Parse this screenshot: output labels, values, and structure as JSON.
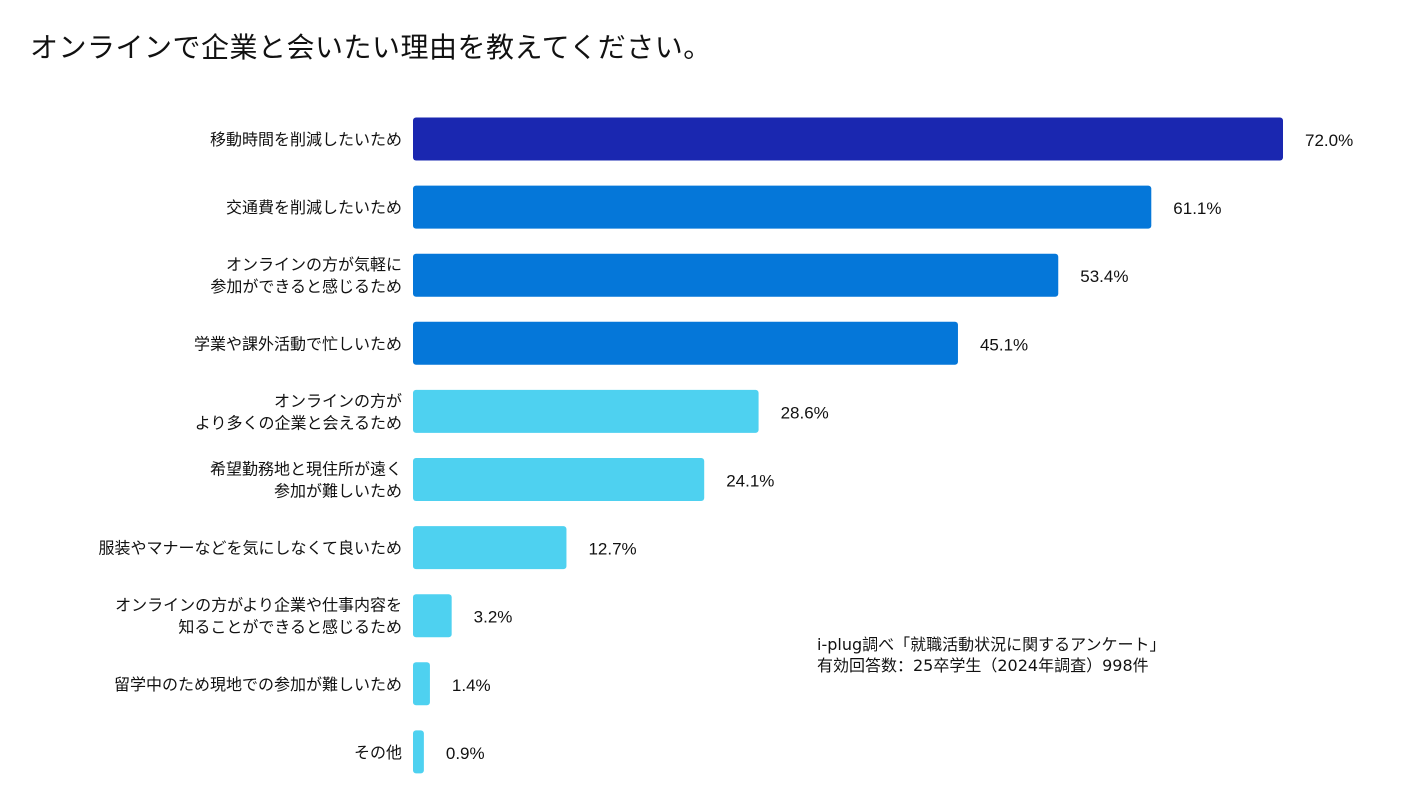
{
  "chart_data": {
    "type": "bar",
    "orientation": "horizontal",
    "title": "オンラインで企業と会いたい理由を教えてください。",
    "categories": [
      [
        "移動時間を削減したいため"
      ],
      [
        "交通費を削減したいため"
      ],
      [
        "オンラインの方が気軽に",
        "参加ができると感じるため"
      ],
      [
        "学業や課外活動で忙しいため"
      ],
      [
        "オンラインの方が",
        "より多くの企業と会えるため"
      ],
      [
        "希望勤務地と現住所が遠く",
        "参加が難しいため"
      ],
      [
        "服装やマナーなどを気にしなくて良いため"
      ],
      [
        "オンラインの方がより企業や仕事内容を",
        "知ることができると感じるため"
      ],
      [
        "留学中のため現地での参加が難しいため"
      ],
      [
        "その他"
      ]
    ],
    "values": [
      72.0,
      61.1,
      53.4,
      45.1,
      28.6,
      24.1,
      12.7,
      3.2,
      1.4,
      0.9
    ],
    "value_labels": [
      "72.0%",
      "61.1%",
      "53.4%",
      "45.1%",
      "28.6%",
      "24.1%",
      "12.7%",
      "3.2%",
      "1.4%",
      "0.9%"
    ],
    "colors": [
      "#1A27B0",
      "#0577D9",
      "#0577D9",
      "#0577D9",
      "#4ED1F0",
      "#4ED1F0",
      "#4ED1F0",
      "#4ED1F0",
      "#4ED1F0",
      "#4ED1F0"
    ],
    "xlim": [
      0,
      72.0
    ],
    "xlabel": "",
    "ylabel": "",
    "grid": false,
    "legend": "none"
  },
  "source": {
    "line1": "i-plug調べ「就職活動状況に関するアンケート」",
    "line2": "有効回答数：25卒学生（2024年調査）998件"
  }
}
